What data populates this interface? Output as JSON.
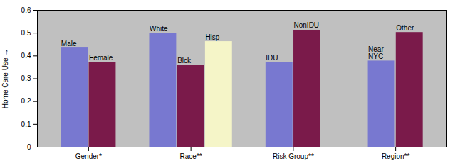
{
  "chart_data": {
    "type": "bar",
    "categories": [
      "Gender*",
      "Race**",
      "Risk Group**",
      "Region**"
    ],
    "series": [
      {
        "color": "#7878d0",
        "values": [
          0.435,
          0.5,
          0.37,
          0.378
        ],
        "labels": [
          "Male",
          "White",
          "IDU",
          "Near\nNYC"
        ]
      },
      {
        "color": "#7a1a4a",
        "values": [
          0.37,
          0.358,
          0.513,
          0.503
        ],
        "labels": [
          "Female",
          "Blck",
          "NonIDU",
          "Other"
        ]
      },
      {
        "color": "#f5f5c8",
        "values": [
          null,
          0.463,
          null,
          null
        ],
        "labels": [
          null,
          "Hisp",
          null,
          null
        ]
      }
    ],
    "ylabel": "Home Care Use",
    "ylim": [
      0,
      0.6
    ],
    "yticks": [
      0,
      0.1,
      0.2,
      0.3,
      0.4,
      0.5,
      0.6
    ],
    "grid": false
  }
}
